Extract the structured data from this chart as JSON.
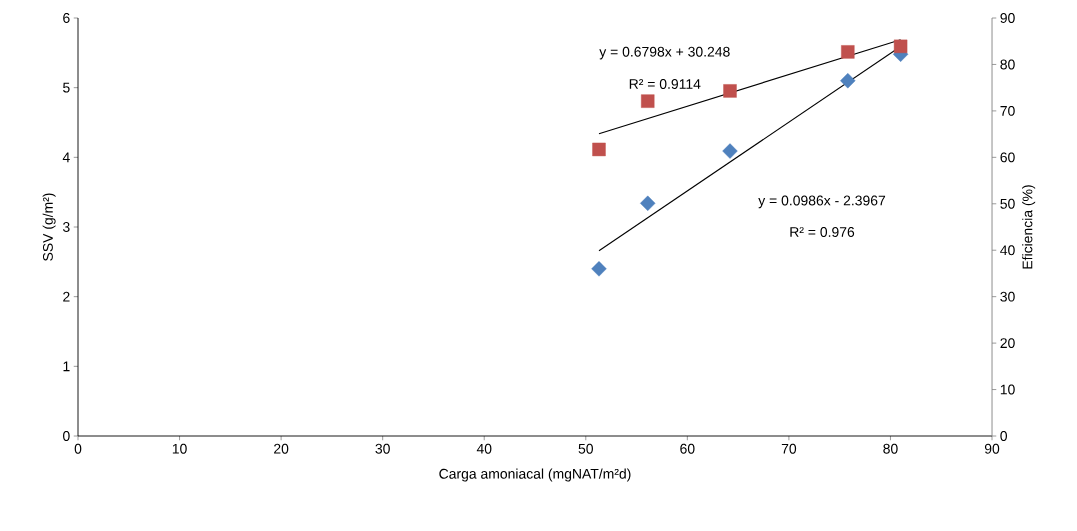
{
  "chart_data": {
    "type": "scatter",
    "xlabel": "Carga amoniacal (mgNAT/m²d)",
    "ylabel": "SSV (g/m²)",
    "y2label": "Eficiencia (%)",
    "xlim": [
      0,
      90
    ],
    "xticks": [
      0,
      10,
      20,
      30,
      40,
      50,
      60,
      70,
      80,
      90
    ],
    "ylim": [
      0,
      6
    ],
    "yticks": [
      0,
      1,
      2,
      3,
      4,
      5,
      6
    ],
    "y2lim": [
      0,
      90
    ],
    "y2ticks": [
      0,
      10,
      20,
      30,
      40,
      50,
      60,
      70,
      80,
      90
    ],
    "series": [
      {
        "color": "#4f81bd",
        "marker": "diamond",
        "x": [
          51.3,
          56.1,
          64.2,
          75.8,
          81.0
        ],
        "values": [
          2.4,
          3.34,
          4.09,
          5.1,
          5.48
        ]
      },
      {
        "color": "#c0504d",
        "marker": "square",
        "axis": "y2",
        "x": [
          51.3,
          56.1,
          64.2,
          75.8,
          81.0
        ],
        "values": [
          61.7,
          72.1,
          74.3,
          82.7,
          83.9
        ]
      },
      {
        "type": "line",
        "color": "#000000",
        "marker": "none",
        "x": [
          51.3,
          81.0
        ],
        "values": [
          2.66,
          5.59
        ]
      },
      {
        "type": "line",
        "color": "#000000",
        "marker": "none",
        "axis": "y2",
        "x": [
          51.3,
          81.0
        ],
        "values": [
          65.1,
          85.3
        ]
      }
    ],
    "annotations": [
      "y = 0.6798x + 30.248",
      "R² = 0.9114",
      "y = 0.0986x - 2.3967",
      "R² = 0.976"
    ]
  }
}
